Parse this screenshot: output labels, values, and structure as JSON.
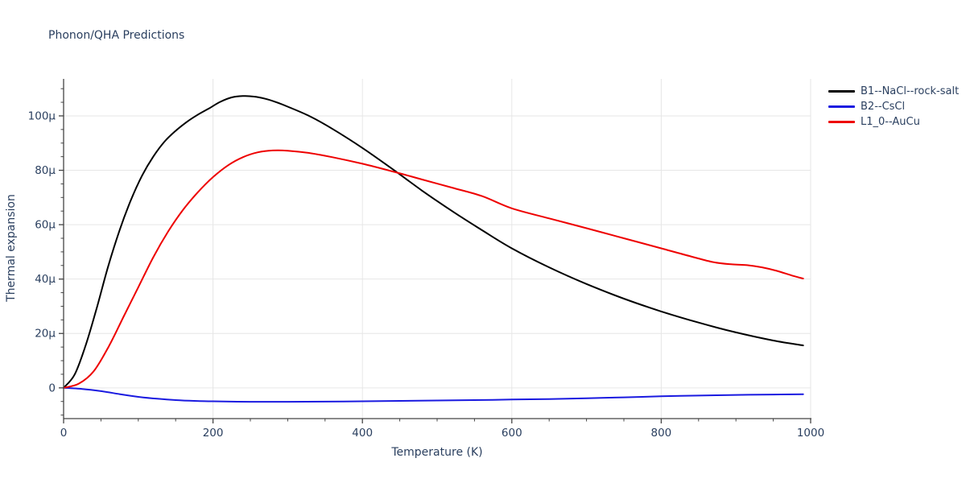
{
  "colors": {
    "text": "#2a3f5f",
    "axis": "#444444",
    "grid": "#e6e6e6",
    "background": "#ffffff"
  },
  "chart_data": {
    "type": "line",
    "title": "Phonon/QHA Predictions",
    "xlabel": "Temperature (K)",
    "ylabel": "Thermal expansion",
    "y_unit": "µ",
    "xlim": [
      0,
      1000
    ],
    "ylim": [
      -11.3,
      113.6
    ],
    "grid": true,
    "legend_position": "top-right",
    "x_ticks": {
      "major": [
        0,
        200,
        400,
        600,
        800,
        1000
      ],
      "labels": [
        "0",
        "200",
        "400",
        "600",
        "800",
        "1000"
      ],
      "minor_step": 50
    },
    "y_ticks": {
      "major": [
        0,
        20,
        40,
        60,
        80,
        100
      ],
      "labels": [
        "0",
        "20μ",
        "40μ",
        "60μ",
        "80μ",
        "100μ"
      ],
      "minor_step": 5,
      "minor_range": [
        -10,
        110
      ]
    },
    "series": [
      {
        "name": "B1--NaCl--rock-salt",
        "color": "#000000",
        "x": [
          0,
          15,
          30,
          45,
          60,
          75,
          90,
          105,
          120,
          135,
          150,
          165,
          180,
          195,
          210,
          225,
          240,
          255,
          270,
          285,
          300,
          330,
          360,
          400,
          440,
          480,
          520,
          560,
          600,
          650,
          700,
          750,
          800,
          850,
          900,
          950,
          990
        ],
        "y": [
          0,
          5,
          16,
          30,
          45,
          58,
          69,
          78,
          85,
          90.5,
          94.5,
          97.8,
          100.5,
          102.8,
          105.2,
          106.8,
          107.3,
          107.1,
          106.3,
          105,
          103.4,
          99.8,
          95.2,
          88.2,
          80.5,
          72.5,
          65,
          58,
          51.3,
          44.3,
          38.2,
          32.8,
          28.1,
          24,
          20.4,
          17.4,
          15.6
        ]
      },
      {
        "name": "B2--CsCl",
        "color": "#1a1ae0",
        "x": [
          0,
          25,
          50,
          75,
          100,
          125,
          150,
          175,
          200,
          250,
          300,
          350,
          400,
          450,
          500,
          550,
          600,
          650,
          700,
          750,
          800,
          850,
          900,
          950,
          990
        ],
        "y": [
          0,
          -0.4,
          -1.2,
          -2.3,
          -3.3,
          -4.0,
          -4.5,
          -4.8,
          -4.95,
          -5.1,
          -5.1,
          -5.05,
          -4.95,
          -4.8,
          -4.65,
          -4.5,
          -4.3,
          -4.1,
          -3.8,
          -3.5,
          -3.1,
          -2.85,
          -2.6,
          -2.45,
          -2.35
        ]
      },
      {
        "name": "L1_0--AuCu",
        "color": "#ee0000",
        "x": [
          0,
          20,
          40,
          60,
          80,
          100,
          120,
          140,
          160,
          180,
          200,
          220,
          240,
          260,
          280,
          300,
          330,
          360,
          400,
          440,
          480,
          520,
          560,
          600,
          650,
          700,
          750,
          800,
          840,
          870,
          895,
          915,
          935,
          955,
          975,
          990
        ],
        "y": [
          0,
          1.5,
          6,
          15,
          26,
          37,
          48,
          57.5,
          65.5,
          72,
          77.5,
          81.8,
          84.8,
          86.6,
          87.3,
          87.2,
          86.3,
          84.8,
          82.4,
          79.6,
          76.6,
          73.6,
          70.5,
          66,
          62.3,
          58.7,
          55,
          51.3,
          48.3,
          46.2,
          45.4,
          45.1,
          44.3,
          43,
          41.3,
          40.2
        ]
      }
    ]
  }
}
